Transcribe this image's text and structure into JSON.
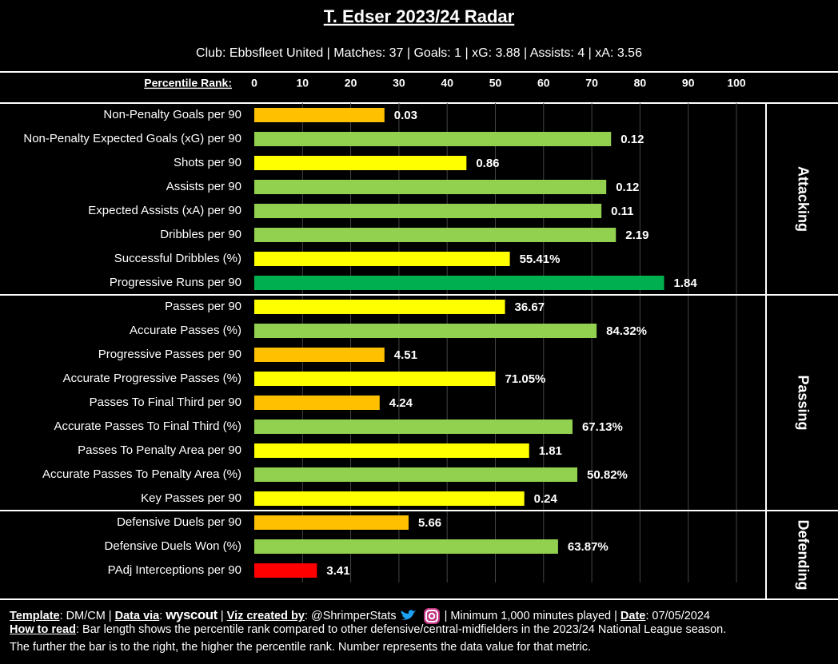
{
  "chart_data": {
    "type": "bar",
    "title": "T. Edser 2023/24 Radar",
    "subtitle": "Club: Ebbsfleet United | Matches: 37 | Goals: 1 | xG: 3.88 | Assists: 4 | xA: 3.56",
    "xlabel": "Percentile Rank:",
    "xlim": [
      0,
      100
    ],
    "xticks": [
      0,
      10,
      20,
      30,
      40,
      50,
      60,
      70,
      80,
      90,
      100
    ],
    "grid": true,
    "groups": [
      {
        "name": "Attacking",
        "categories": [
          "Non-Penalty Goals per 90",
          "Non-Penalty Expected Goals (xG) per 90",
          "Shots per 90",
          "Assists per 90",
          "Expected Assists (xA) per 90",
          "Dribbles per 90",
          "Successful Dribbles (%)",
          "Progressive Runs per 90"
        ],
        "values": [
          27,
          74,
          44,
          73,
          72,
          75,
          53,
          85
        ],
        "metric_values": [
          "0.03",
          "0.12",
          "0.86",
          "0.12",
          "0.11",
          "2.19",
          "55.41%",
          "1.84"
        ],
        "colors": [
          "#ffc000",
          "#92d050",
          "#ffff00",
          "#92d050",
          "#92d050",
          "#92d050",
          "#ffff00",
          "#00b050"
        ]
      },
      {
        "name": "Passing",
        "categories": [
          "Passes per 90",
          "Accurate Passes (%)",
          "Progressive Passes per 90",
          "Accurate Progressive Passes (%)",
          "Passes To Final Third per 90",
          "Accurate Passes To Final Third (%)",
          "Passes To Penalty Area per 90",
          "Accurate Passes To Penalty Area (%)",
          "Key Passes per 90"
        ],
        "values": [
          52,
          71,
          27,
          50,
          26,
          66,
          57,
          67,
          56
        ],
        "metric_values": [
          "36.67",
          "84.32%",
          "4.51",
          "71.05%",
          "4.24",
          "67.13%",
          "1.81",
          "50.82%",
          "0.24"
        ],
        "colors": [
          "#ffff00",
          "#92d050",
          "#ffc000",
          "#ffff00",
          "#ffc000",
          "#92d050",
          "#ffff00",
          "#92d050",
          "#ffff00"
        ]
      },
      {
        "name": "Defending",
        "categories": [
          "Defensive Duels per 90",
          "Defensive Duels Won (%)",
          "PAdj Interceptions per 90"
        ],
        "values": [
          32,
          63,
          13
        ],
        "metric_values": [
          "5.66",
          "63.87%",
          "3.41"
        ],
        "colors": [
          "#ffc000",
          "#92d050",
          "#ff0000"
        ]
      }
    ],
    "footer": [
      [
        {
          "text": "Template",
          "bold": true
        },
        {
          "text": ": DM/CM | ",
          "bold": false
        },
        {
          "text": "Data via",
          "bold": true
        },
        {
          "text": ": ",
          "bold": false
        },
        {
          "text": "wyscout",
          "bold": true
        },
        {
          "text": " | ",
          "bold": false
        },
        {
          "text": "Viz created by",
          "bold": true
        },
        {
          "text": ": @ShrimperStats ",
          "bold": false
        }
      ],
      [
        {
          "text": " | Minimum 1,000 minutes played | ",
          "bold": false
        },
        {
          "text": "Date",
          "bold": true
        },
        {
          "text": ": 07/05/2024",
          "bold": false
        }
      ],
      [
        {
          "text": "How to read",
          "bold": true
        },
        {
          "text": ": Bar length shows the percentile rank compared to other defensive/central-midfielders in the 2023/24 National League season.",
          "bold": false
        }
      ],
      [
        {
          "text": "The further the bar is to the right, the higher the percentile rank. Number represents the data value for that metric.",
          "bold": false
        }
      ]
    ]
  }
}
